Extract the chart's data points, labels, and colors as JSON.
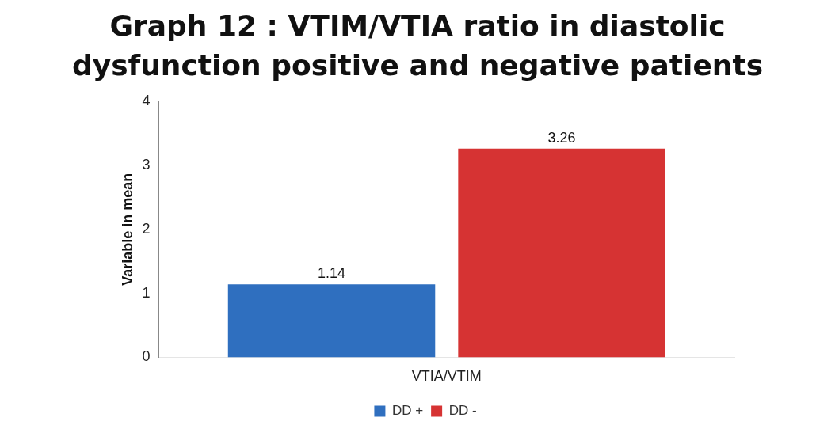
{
  "chart_data": {
    "type": "bar",
    "title": "Graph 12 : VTIM/VTIA ratio in diastolic dysfunction positive and negative patients",
    "ylabel": "Variable in mean",
    "categories": [
      "VTIA/VTIM"
    ],
    "series": [
      {
        "name": "DD +",
        "color": "#2f6fbf",
        "values": [
          1.14
        ]
      },
      {
        "name": "DD -",
        "color": "#d63333",
        "values": [
          3.26
        ]
      }
    ],
    "ylim": [
      0,
      4
    ],
    "yticks": [
      0,
      1,
      2,
      3,
      4
    ],
    "grid": false,
    "legend": "bottom",
    "data_labels": true
  }
}
